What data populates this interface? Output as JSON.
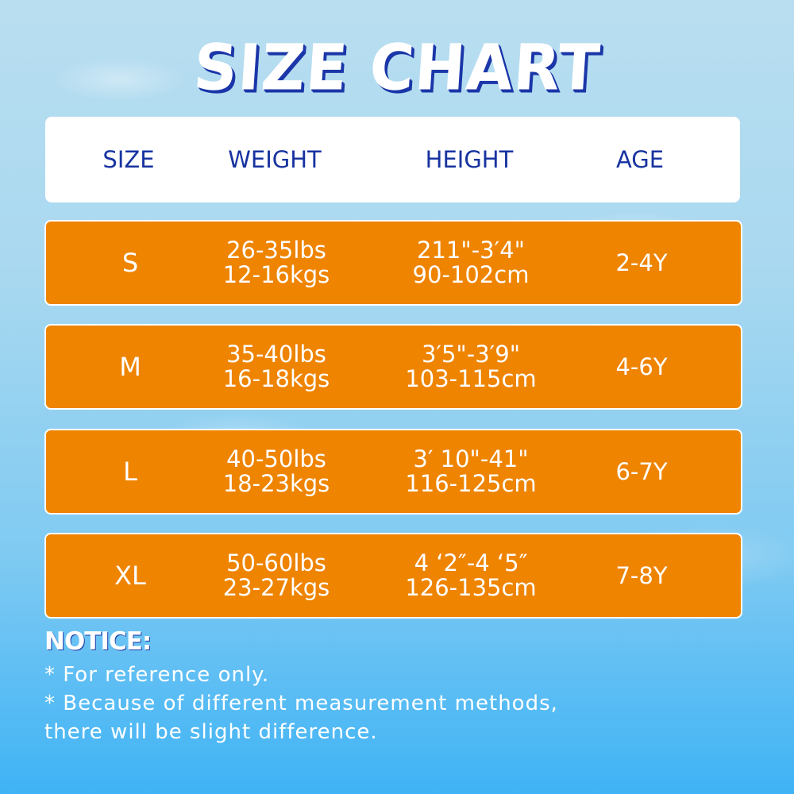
{
  "title": "SIZE CHART",
  "colors": {
    "row": "#ee8400",
    "header_text": "#1733a0",
    "title_shadow": "#1a36a8"
  },
  "headers": [
    "SIZE",
    "WEIGHT",
    "HEIGHT",
    "AGE"
  ],
  "rows": [
    {
      "size": "S",
      "weight": [
        "26-35lbs",
        "12-16kgs"
      ],
      "height": [
        "211\"-3′4\"",
        "90-102cm"
      ],
      "age": "2-4Y"
    },
    {
      "size": "M",
      "weight": [
        "35-40lbs",
        "16-18kgs"
      ],
      "height": [
        "3′5\"-3′9\"",
        "103-115cm"
      ],
      "age": "4-6Y"
    },
    {
      "size": "L",
      "weight": [
        "40-50lbs",
        "18-23kgs"
      ],
      "height": [
        "3′ 10\"-41\"",
        "116-125cm"
      ],
      "age": "6-7Y"
    },
    {
      "size": "XL",
      "weight": [
        "50-60lbs",
        "23-27kgs"
      ],
      "height": [
        "4 ‘2″-4 ‘5″",
        "126-135cm"
      ],
      "age": "7-8Y"
    }
  ],
  "notice": {
    "heading": "NOTICE:",
    "lines": [
      "* For reference only.",
      "* Because of different measurement methods,",
      "there will be slight difference."
    ]
  }
}
